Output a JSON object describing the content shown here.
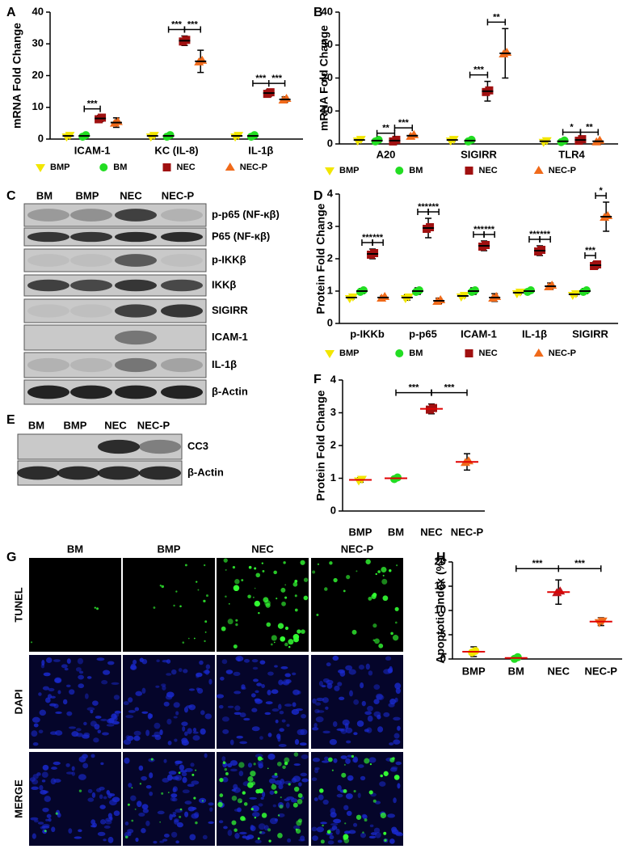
{
  "chart_data": [
    {
      "type": "dot",
      "panel": "A",
      "ylabel": "mRNA Fold Change",
      "ylim": [
        0,
        40
      ],
      "yticks": [
        0,
        10,
        20,
        30,
        40
      ],
      "legend": "bottom",
      "mean_line_color": "#000000",
      "categories": [
        "ICAM-1",
        "KC (IL-8)",
        "IL-1β"
      ],
      "series": [
        {
          "name": "BMP",
          "color": "#f2e600",
          "marker": "triangle-down",
          "values": [
            1,
            1,
            1
          ],
          "errors": [
            0.3,
            0.5,
            0.3
          ]
        },
        {
          "name": "BM",
          "color": "#22dd22",
          "marker": "circle",
          "values": [
            1,
            1,
            1
          ],
          "errors": [
            0.3,
            0.3,
            0.3
          ]
        },
        {
          "name": "NEC",
          "color": "#a01010",
          "marker": "square",
          "values": [
            6.5,
            31,
            14.5
          ],
          "errors": [
            1,
            1.5,
            1
          ]
        },
        {
          "name": "NEC-P",
          "color": "#f06a1a",
          "marker": "triangle-up",
          "values": [
            5.2,
            24.5,
            12.5
          ],
          "errors": [
            1.5,
            3.5,
            0.8
          ]
        }
      ],
      "significance": [
        {
          "category": "ICAM-1",
          "between": [
            "BM",
            "NEC"
          ],
          "label": "***"
        },
        {
          "category": "KC (IL-8)",
          "between": [
            "BM",
            "NEC"
          ],
          "label": "***"
        },
        {
          "category": "KC (IL-8)",
          "between": [
            "NEC",
            "NEC-P"
          ],
          "label": "***"
        },
        {
          "category": "IL-1β",
          "between": [
            "BM",
            "NEC"
          ],
          "label": "***"
        },
        {
          "category": "IL-1β",
          "between": [
            "NEC",
            "NEC-P"
          ],
          "label": "***"
        }
      ]
    },
    {
      "type": "dot",
      "panel": "B",
      "ylabel": "mRNA Fold Change",
      "ylim": [
        0,
        40
      ],
      "yticks": [
        0,
        10,
        20,
        30,
        40
      ],
      "legend": "bottom",
      "mean_line_color": "#000000",
      "categories": [
        "A20",
        "SIGIRR",
        "TLR4"
      ],
      "series": [
        {
          "name": "BMP",
          "color": "#f2e600",
          "marker": "triangle-down",
          "values": [
            1.2,
            1.2,
            0.8
          ],
          "errors": [
            0.3,
            0.5,
            0.2
          ]
        },
        {
          "name": "BM",
          "color": "#22dd22",
          "marker": "circle",
          "values": [
            1,
            1,
            0.8
          ],
          "errors": [
            0.3,
            0.3,
            0.2
          ]
        },
        {
          "name": "NEC",
          "color": "#a01010",
          "marker": "square",
          "values": [
            1,
            16,
            1.2
          ],
          "errors": [
            0.3,
            3,
            0.4
          ]
        },
        {
          "name": "NEC-P",
          "color": "#f06a1a",
          "marker": "triangle-up",
          "values": [
            2.5,
            27.5,
            0.8
          ],
          "errors": [
            0.4,
            7.5,
            0.3
          ]
        }
      ],
      "significance": [
        {
          "category": "A20",
          "between": [
            "BM",
            "NEC"
          ],
          "label": "**"
        },
        {
          "category": "A20",
          "between": [
            "NEC",
            "NEC-P"
          ],
          "label": "***"
        },
        {
          "category": "SIGIRR",
          "between": [
            "BM",
            "NEC"
          ],
          "label": "***"
        },
        {
          "category": "SIGIRR",
          "between": [
            "NEC",
            "NEC-P"
          ],
          "label": "**"
        },
        {
          "category": "TLR4",
          "between": [
            "BM",
            "NEC"
          ],
          "label": "*"
        },
        {
          "category": "TLR4",
          "between": [
            "NEC",
            "NEC-P"
          ],
          "label": "**"
        }
      ]
    },
    {
      "type": "dot",
      "panel": "D",
      "ylabel": "Protein Fold Change",
      "ylim": [
        0,
        4
      ],
      "yticks": [
        0,
        1,
        2,
        3,
        4
      ],
      "legend": "bottom",
      "mean_line_color": "#000000",
      "categories": [
        "p-IKKb",
        "p-p65",
        "ICAM-1",
        "IL-1β",
        "SIGIRR"
      ],
      "series": [
        {
          "name": "BMP",
          "color": "#f2e600",
          "marker": "triangle-down",
          "values": [
            0.8,
            0.8,
            0.85,
            0.95,
            0.9
          ],
          "errors": [
            0.05,
            0.08,
            0.05,
            0.05,
            0.05
          ]
        },
        {
          "name": "BM",
          "color": "#22dd22",
          "marker": "circle",
          "values": [
            1,
            1,
            1,
            1,
            1
          ],
          "errors": [
            0.08,
            0.1,
            0.1,
            0.05,
            0.08
          ]
        },
        {
          "name": "NEC",
          "color": "#a01010",
          "marker": "square",
          "values": [
            2.15,
            2.95,
            2.4,
            2.25,
            1.8
          ],
          "errors": [
            0.15,
            0.3,
            0.15,
            0.15,
            0.1
          ]
        },
        {
          "name": "NEC-P",
          "color": "#f06a1a",
          "marker": "triangle-up",
          "values": [
            0.8,
            0.7,
            0.8,
            1.15,
            3.3
          ],
          "errors": [
            0.05,
            0.08,
            0.12,
            0.1,
            0.45
          ]
        }
      ],
      "significance": [
        {
          "category": "p-IKKb",
          "between": [
            "BM",
            "NEC"
          ],
          "label": "***"
        },
        {
          "category": "p-IKKb",
          "between": [
            "NEC",
            "NEC-P"
          ],
          "label": "***"
        },
        {
          "category": "p-p65",
          "between": [
            "BM",
            "NEC"
          ],
          "label": "***"
        },
        {
          "category": "p-p65",
          "between": [
            "NEC",
            "NEC-P"
          ],
          "label": "***"
        },
        {
          "category": "ICAM-1",
          "between": [
            "BM",
            "NEC"
          ],
          "label": "***"
        },
        {
          "category": "ICAM-1",
          "between": [
            "NEC",
            "NEC-P"
          ],
          "label": "***"
        },
        {
          "category": "IL-1β",
          "between": [
            "BM",
            "NEC"
          ],
          "label": "***"
        },
        {
          "category": "IL-1β",
          "between": [
            "NEC",
            "NEC-P"
          ],
          "label": "***"
        },
        {
          "category": "SIGIRR",
          "between": [
            "BM",
            "NEC"
          ],
          "label": "***"
        },
        {
          "category": "SIGIRR",
          "between": [
            "NEC",
            "NEC-P"
          ],
          "label": "*"
        }
      ]
    },
    {
      "type": "dot",
      "panel": "F",
      "ylabel": "Protein Fold Change",
      "ylim": [
        0,
        4
      ],
      "yticks": [
        0,
        1,
        2,
        3,
        4
      ],
      "mean_line_color": "#e00000",
      "categories": [
        "BMP",
        "BM",
        "NEC",
        "NEC-P"
      ],
      "values": [
        0.95,
        1,
        3.12,
        1.5
      ],
      "errors": [
        0.07,
        0.04,
        0.15,
        0.25
      ],
      "colors": [
        "#f2e600",
        "#22dd22",
        "#a01010",
        "#f06a1a"
      ],
      "markers": [
        "triangle-down",
        "circle",
        "square",
        "triangle-up"
      ],
      "significance": [
        {
          "between": [
            "BM",
            "NEC"
          ],
          "label": "***"
        },
        {
          "between": [
            "NEC",
            "NEC-P"
          ],
          "label": "***"
        }
      ]
    },
    {
      "type": "dot",
      "panel": "H",
      "ylabel": "Apoptotic Index (%)",
      "ylim": [
        0,
        20
      ],
      "yticks": [
        0,
        5,
        10,
        15,
        20
      ],
      "mean_line_color": "#e00000",
      "categories": [
        "BMP",
        "BM",
        "NEC",
        "NEC-P"
      ],
      "values": [
        1.5,
        0.2,
        13.8,
        7.7
      ],
      "errors": [
        1,
        0.1,
        2.5,
        0.8
      ],
      "colors": [
        "#f2e600",
        "#22dd22",
        "#c0141a",
        "#f06a1a"
      ],
      "markers": [
        "circle",
        "circle",
        "triangle-up",
        "triangle-down"
      ],
      "significance": [
        {
          "between": [
            "BM",
            "NEC"
          ],
          "label": "***"
        },
        {
          "between": [
            "NEC",
            "NEC-P"
          ],
          "label": "***"
        }
      ]
    }
  ],
  "blots": [
    {
      "panel": "C",
      "lanes": [
        "BM",
        "BMP",
        "NEC",
        "NEC-P"
      ],
      "rows": [
        "p-p65 (NF-κβ)",
        "P65 (NF-κβ)",
        "p-IKKβ",
        "IKKβ",
        "SIGIRR",
        "ICAM-1",
        "IL-1β",
        "β-Actin"
      ]
    },
    {
      "panel": "E",
      "lanes": [
        "BM",
        "BMP",
        "NEC",
        "NEC-P"
      ],
      "rows": [
        "CC3",
        "β-Actin"
      ]
    }
  ],
  "microscopy": {
    "panel": "G",
    "columns": [
      "BM",
      "BMP",
      "NEC",
      "NEC-P"
    ],
    "rows": [
      "TUNEL",
      "DAPI",
      "MERGE"
    ]
  }
}
